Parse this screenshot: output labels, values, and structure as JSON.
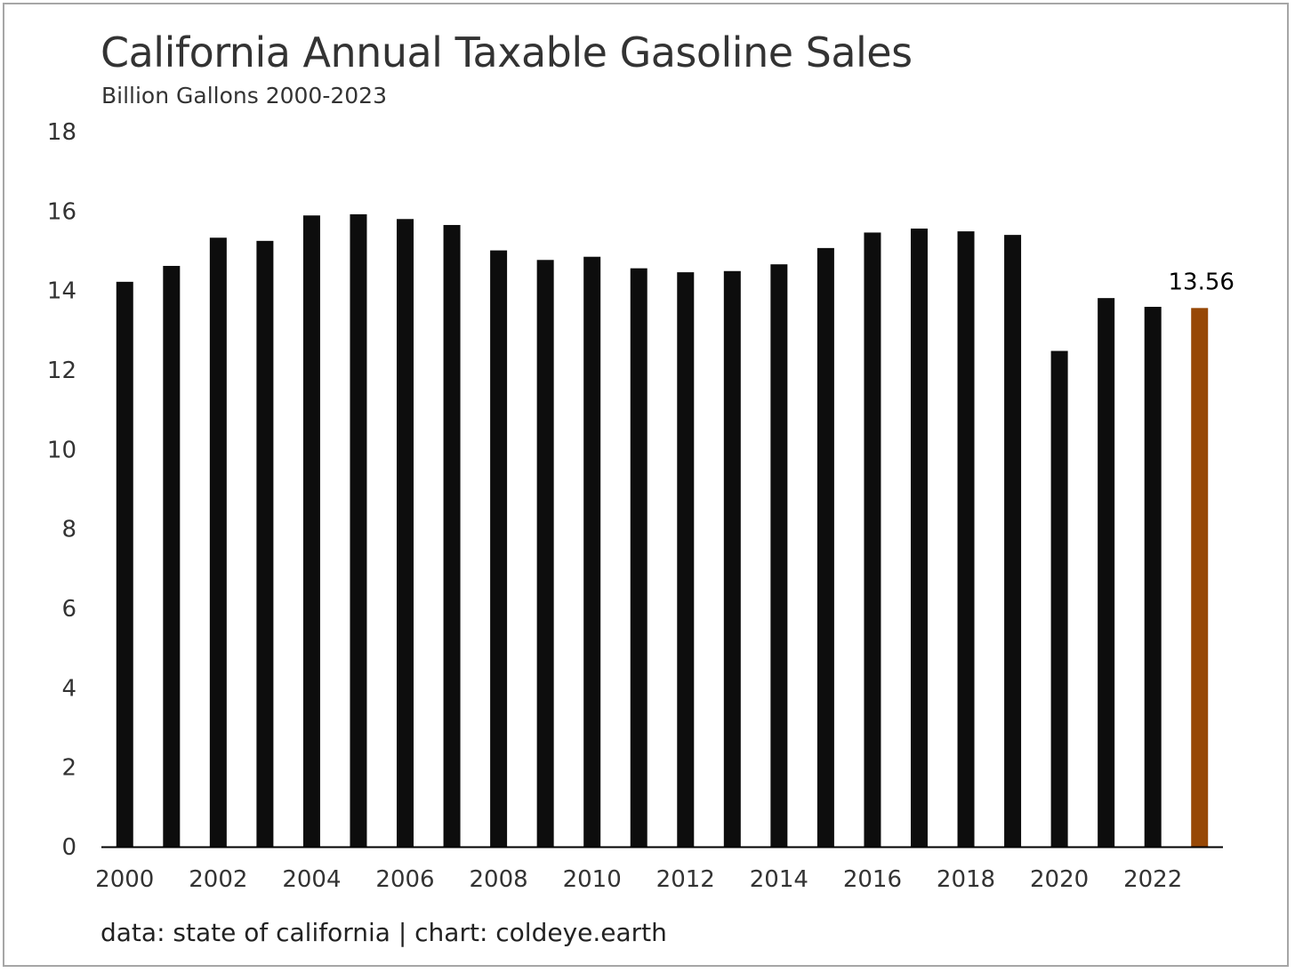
{
  "chart_data": {
    "type": "bar",
    "title": "California Annual Taxable Gasoline Sales",
    "subtitle": "Billion Gallons 2000-2023",
    "source": "data: state of california | chart: coldeye.earth",
    "xlabel": "",
    "ylabel": "",
    "ylim": [
      0,
      18
    ],
    "yticks": [
      "0",
      "2",
      "4",
      "6",
      "8",
      "10",
      "12",
      "14",
      "16",
      "18"
    ],
    "xtick_labels": [
      "2000",
      "2002",
      "2004",
      "2006",
      "2008",
      "2010",
      "2012",
      "2014",
      "2016",
      "2018",
      "2020",
      "2022"
    ],
    "grid": false,
    "categories": [
      "2000",
      "2001",
      "2002",
      "2003",
      "2004",
      "2005",
      "2006",
      "2007",
      "2008",
      "2009",
      "2010",
      "2011",
      "2012",
      "2013",
      "2014",
      "2015",
      "2016",
      "2017",
      "2018",
      "2019",
      "2020",
      "2021",
      "2022",
      "2023"
    ],
    "values": [
      14.22,
      14.62,
      15.33,
      15.25,
      15.89,
      15.92,
      15.8,
      15.65,
      15.01,
      14.77,
      14.85,
      14.56,
      14.46,
      14.49,
      14.66,
      15.07,
      15.46,
      15.56,
      15.49,
      15.4,
      12.48,
      13.81,
      13.59,
      13.56
    ],
    "highlight_index": 23,
    "data_label": "13.56",
    "colors": {
      "bar": "#0d0d0d",
      "highlight": "#974806",
      "axis": "#000000",
      "text": "#333333"
    }
  }
}
